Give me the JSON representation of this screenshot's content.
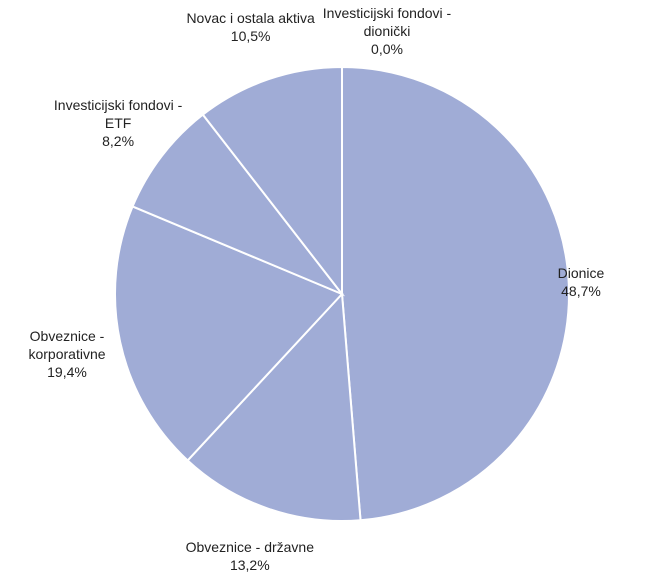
{
  "chart_data": {
    "type": "pie",
    "categories": [
      "Dionice",
      "Obveznice - državne",
      "Obveznice - korporativne",
      "Investicijski fondovi - ETF",
      "Novac i ostala aktiva",
      "Investicijski fondovi - dionički"
    ],
    "values": [
      48.7,
      13.2,
      19.4,
      8.2,
      10.5,
      0.0
    ],
    "value_labels": [
      "48,7%",
      "13,2%",
      "19,4%",
      "8,2%",
      "10,5%",
      "0,0%"
    ],
    "color": "#a0acd6"
  }
}
